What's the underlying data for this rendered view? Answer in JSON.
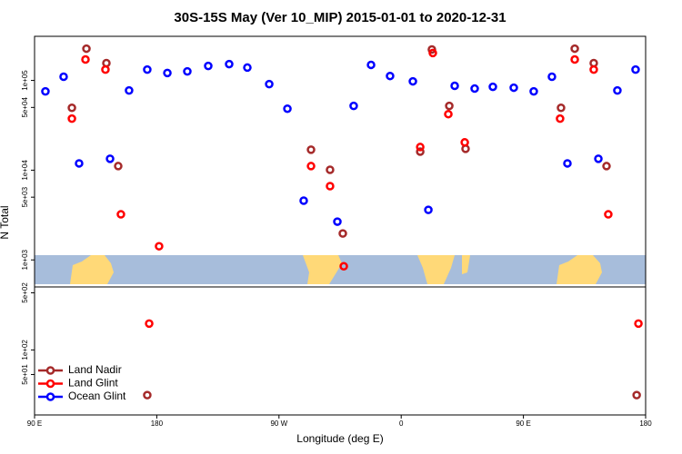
{
  "chart_data": [
    {
      "type": "scatter",
      "title": "30S-15S May (Ver 10_MIP)   2015-01-01 to 2020-12-31",
      "ylabel": "N Total",
      "log_y": true,
      "xlim": [
        90,
        540
      ],
      "ylim": [
        500,
        310000
      ],
      "yticks": [
        {
          "value": 1000,
          "label": "1e+03"
        },
        {
          "value": 5000,
          "label": "5e+03"
        },
        {
          "value": 10000,
          "label": "1e+04"
        },
        {
          "value": 50000,
          "label": "5e+04"
        },
        {
          "value": 100000,
          "label": "1e+05"
        }
      ],
      "series": [
        {
          "name": "Land Nadir",
          "color": "#a52a2a",
          "x": [
            117.5,
            128.2,
            142.9,
            151.6,
            293.6,
            307.6,
            317,
            374,
            382.6,
            395.4,
            407.4,
            477.7,
            487.8,
            501.8,
            511.2
          ],
          "values": [
            49500,
            226000,
            156000,
            11100,
            16900,
            10100,
            1970,
            16100,
            221000,
            52000,
            17300,
            49500,
            226000,
            156000,
            11100
          ]
        },
        {
          "name": "Land Glint",
          "color": "#ff0000",
          "x": [
            117.5,
            127.5,
            142.2,
            153.6,
            181.7,
            293.6,
            307.6,
            317.7,
            374,
            383.3,
            394.7,
            406.8,
            477,
            487.8,
            501.8,
            512.5
          ],
          "values": [
            37500,
            171000,
            132000,
            3220,
            1420,
            11100,
            6640,
            849,
            18100,
            202000,
            42100,
            20400,
            37500,
            171000,
            132000,
            3220
          ]
        },
        {
          "name": "Ocean Glint",
          "color": "#0000ff",
          "x": [
            98,
            111.4,
            122.8,
            145.6,
            159.6,
            173,
            187.8,
            202.5,
            217.9,
            233.3,
            246.7,
            262.8,
            276.2,
            288.2,
            313,
            325,
            337.8,
            351.8,
            368.6,
            380,
            399.4,
            414.1,
            427.5,
            442.9,
            457.6,
            471,
            482.4,
            505.2,
            519.2,
            532.6
          ],
          "values": [
            75500,
            110000,
            11900,
            13400,
            77300,
            132000,
            121000,
            126000,
            145000,
            152000,
            139000,
            91000,
            48400,
            4570,
            2670,
            52000,
            149000,
            112000,
            97700,
            3610,
            87000,
            81100,
            84900,
            83000,
            75500,
            110000,
            11900,
            13400,
            77300,
            132000
          ]
        }
      ]
    },
    {
      "type": "scatter",
      "xlabel": "Longitude (deg E)",
      "log_y": true,
      "legend": "bottom-left",
      "xlim": [
        90,
        540
      ],
      "xticks": [
        {
          "value": 90,
          "label": "90 E"
        },
        {
          "value": 180,
          "label": "180"
        },
        {
          "value": 270,
          "label": "90 W"
        },
        {
          "value": 360,
          "label": "0"
        },
        {
          "value": 450,
          "label": "90 E"
        },
        {
          "value": 540,
          "label": "180"
        }
      ],
      "ylim": [
        16,
        590
      ],
      "yticks": [
        {
          "value": 50,
          "label": "5e+01"
        },
        {
          "value": 100,
          "label": "1e+02"
        },
        {
          "value": 500,
          "label": "5e+02"
        }
      ],
      "series": [
        {
          "name": "Land Nadir",
          "color": "#a52a2a",
          "x": [
            173,
            533.4
          ],
          "values": [
            28,
            28
          ]
        },
        {
          "name": "Land Glint",
          "color": "#ff0000",
          "x": [
            174.4,
            534.7
          ],
          "values": [
            210,
            210
          ]
        }
      ]
    }
  ]
}
